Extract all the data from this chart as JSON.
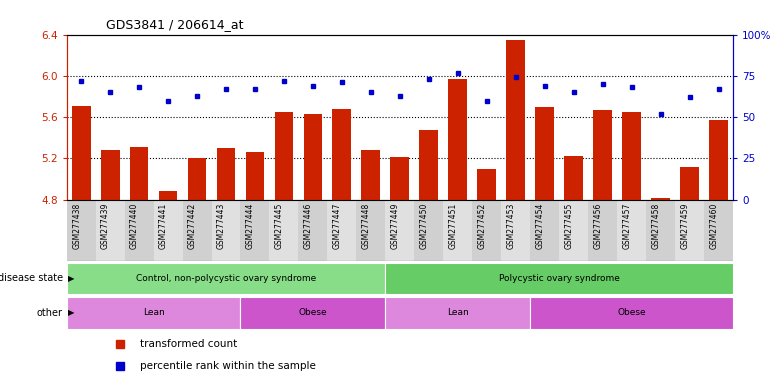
{
  "title": "GDS3841 / 206614_at",
  "samples": [
    "GSM277438",
    "GSM277439",
    "GSM277440",
    "GSM277441",
    "GSM277442",
    "GSM277443",
    "GSM277444",
    "GSM277445",
    "GSM277446",
    "GSM277447",
    "GSM277448",
    "GSM277449",
    "GSM277450",
    "GSM277451",
    "GSM277452",
    "GSM277453",
    "GSM277454",
    "GSM277455",
    "GSM277456",
    "GSM277457",
    "GSM277458",
    "GSM277459",
    "GSM277460"
  ],
  "bar_values": [
    5.71,
    5.28,
    5.31,
    4.88,
    5.2,
    5.3,
    5.26,
    5.65,
    5.63,
    5.68,
    5.28,
    5.21,
    5.48,
    5.97,
    5.1,
    6.35,
    5.7,
    5.22,
    5.67,
    5.65,
    4.82,
    5.12,
    5.57
  ],
  "dot_values": [
    72,
    65,
    68,
    60,
    63,
    67,
    67,
    72,
    69,
    71,
    65,
    63,
    73,
    77,
    60,
    74,
    69,
    65,
    70,
    68,
    52,
    62,
    67
  ],
  "ylim_left": [
    4.8,
    6.4
  ],
  "ylim_right": [
    0,
    100
  ],
  "yticks_left": [
    4.8,
    5.2,
    5.6,
    6.0,
    6.4
  ],
  "yticks_right": [
    0,
    25,
    50,
    75,
    100
  ],
  "ytick_labels_right": [
    "0",
    "25",
    "50",
    "75",
    "100%"
  ],
  "bar_color": "#cc2200",
  "dot_color": "#0000cc",
  "groups": {
    "disease_state": [
      {
        "label": "Control, non-polycystic ovary syndrome",
        "start": 0,
        "end": 11,
        "color": "#88dd88"
      },
      {
        "label": "Polycystic ovary syndrome",
        "start": 11,
        "end": 23,
        "color": "#66cc66"
      }
    ],
    "other": [
      {
        "label": "Lean",
        "start": 0,
        "end": 6,
        "color": "#dd88dd"
      },
      {
        "label": "Obese",
        "start": 6,
        "end": 11,
        "color": "#cc55cc"
      },
      {
        "label": "Lean",
        "start": 11,
        "end": 16,
        "color": "#dd88dd"
      },
      {
        "label": "Obese",
        "start": 16,
        "end": 23,
        "color": "#cc55cc"
      }
    ]
  },
  "legend": [
    {
      "label": "transformed count",
      "color": "#cc2200",
      "marker": "s"
    },
    {
      "label": "percentile rank within the sample",
      "color": "#0000cc",
      "marker": "s"
    }
  ],
  "bg_color": "white",
  "axis_color_left": "#cc2200",
  "axis_color_right": "#0000cc",
  "tick_bg_even": "#d0d0d0",
  "tick_bg_odd": "#e0e0e0"
}
